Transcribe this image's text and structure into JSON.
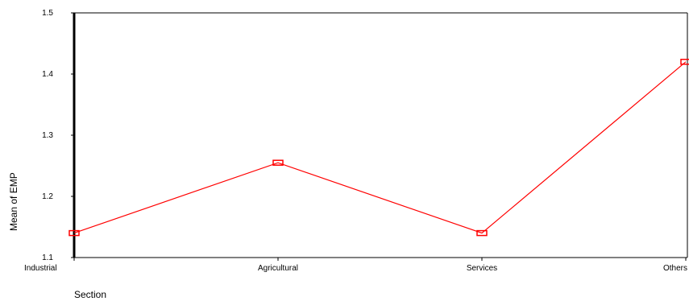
{
  "chart_data": {
    "type": "line",
    "title": "",
    "xlabel": "Section",
    "ylabel": "Mean of EMP",
    "categories": [
      "Industrial",
      "Agricultural",
      "Services",
      "Others"
    ],
    "series": [
      {
        "values": [
          1.14,
          1.255,
          1.14,
          1.42
        ],
        "color": "#ff0000",
        "marker": "square"
      }
    ],
    "ylim": [
      1.1,
      1.5
    ],
    "yticks": [
      "1.1",
      "1.2",
      "1.3",
      "1.4",
      "1.5"
    ],
    "grid": false,
    "legend": "none"
  }
}
